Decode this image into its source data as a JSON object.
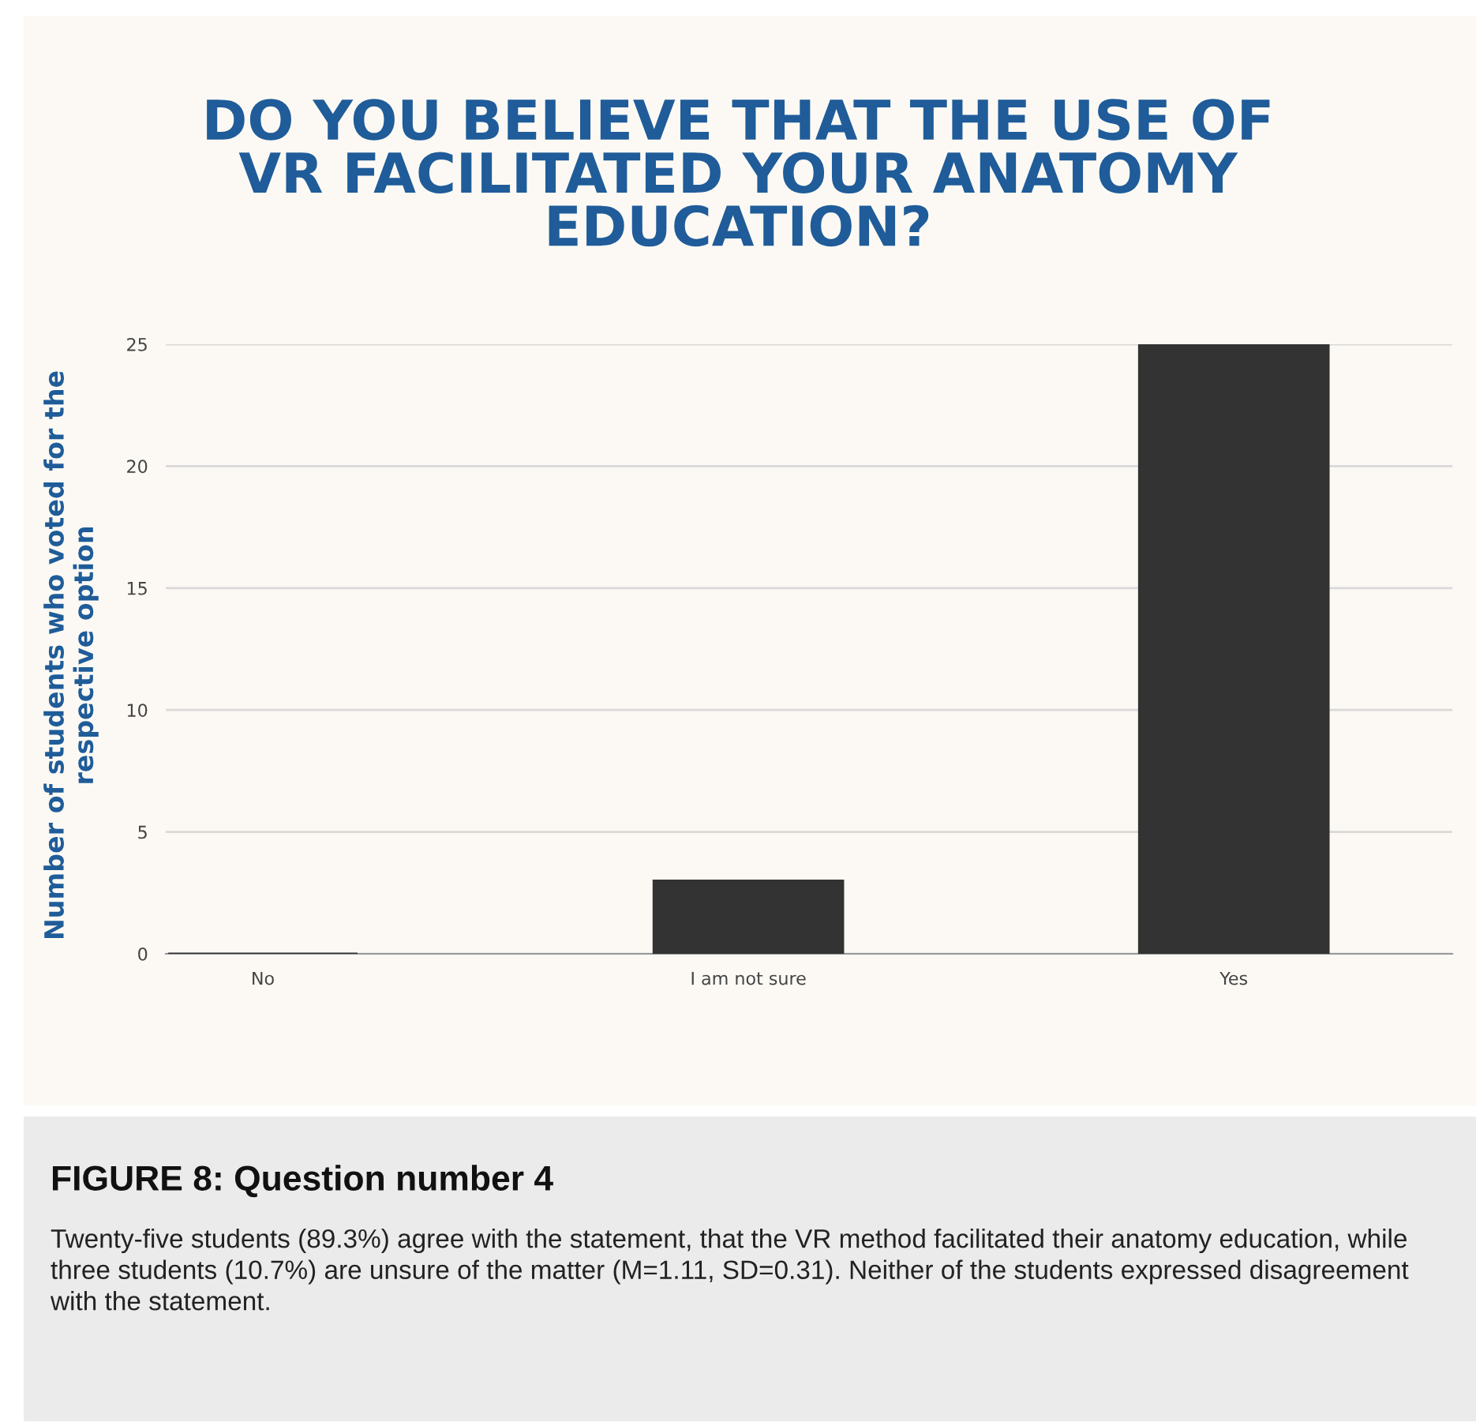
{
  "chart_data": {
    "type": "bar",
    "title": "DO YOU BELIEVE THAT THE USE OF VR FACILITATED YOUR ANATOMY EDUCATION?",
    "ylabel": "Number of students who voted for the respective option",
    "categories": [
      "No",
      "I am not sure",
      "Yes"
    ],
    "values": [
      0,
      3,
      25
    ],
    "color": "#333333",
    "ylim": [
      0,
      25
    ],
    "yticks": [
      0,
      5,
      10,
      15,
      20,
      25
    ],
    "grid": "y",
    "annotations": [
      "FIGURE 8: Question number 4",
      "Twenty-five students (89.3%) agree with the statement, that the VR method facilitated their anatomy education, while three students (10.7%) are unsure of the matter (M=1.11, SD=0.31). Neither of the students expressed disagreement with the statement."
    ]
  }
}
